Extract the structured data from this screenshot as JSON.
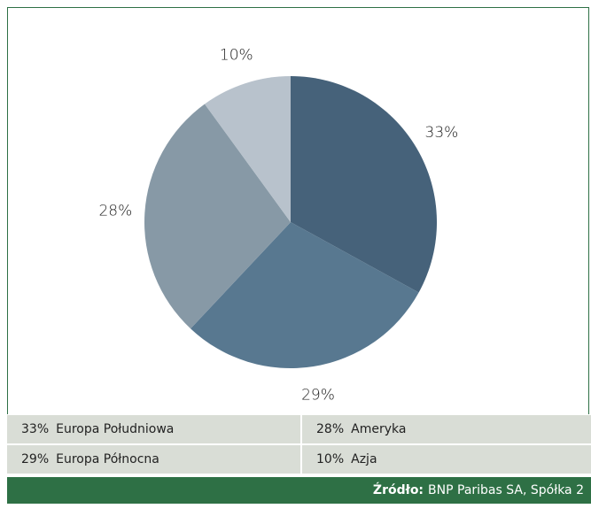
{
  "chart_data": {
    "type": "pie",
    "categories": [
      "Europa Południowa",
      "Europa Północna",
      "Ameryka",
      "Azja"
    ],
    "values": [
      33,
      29,
      28,
      10
    ],
    "value_labels": [
      "33%",
      "29%",
      "28%",
      "10%"
    ],
    "colors": [
      "#46627a",
      "#587890",
      "#8799a6",
      "#b8c2cc"
    ],
    "source_label": "Źródło:",
    "source": "BNP Paribas SA, Spółka 2"
  }
}
